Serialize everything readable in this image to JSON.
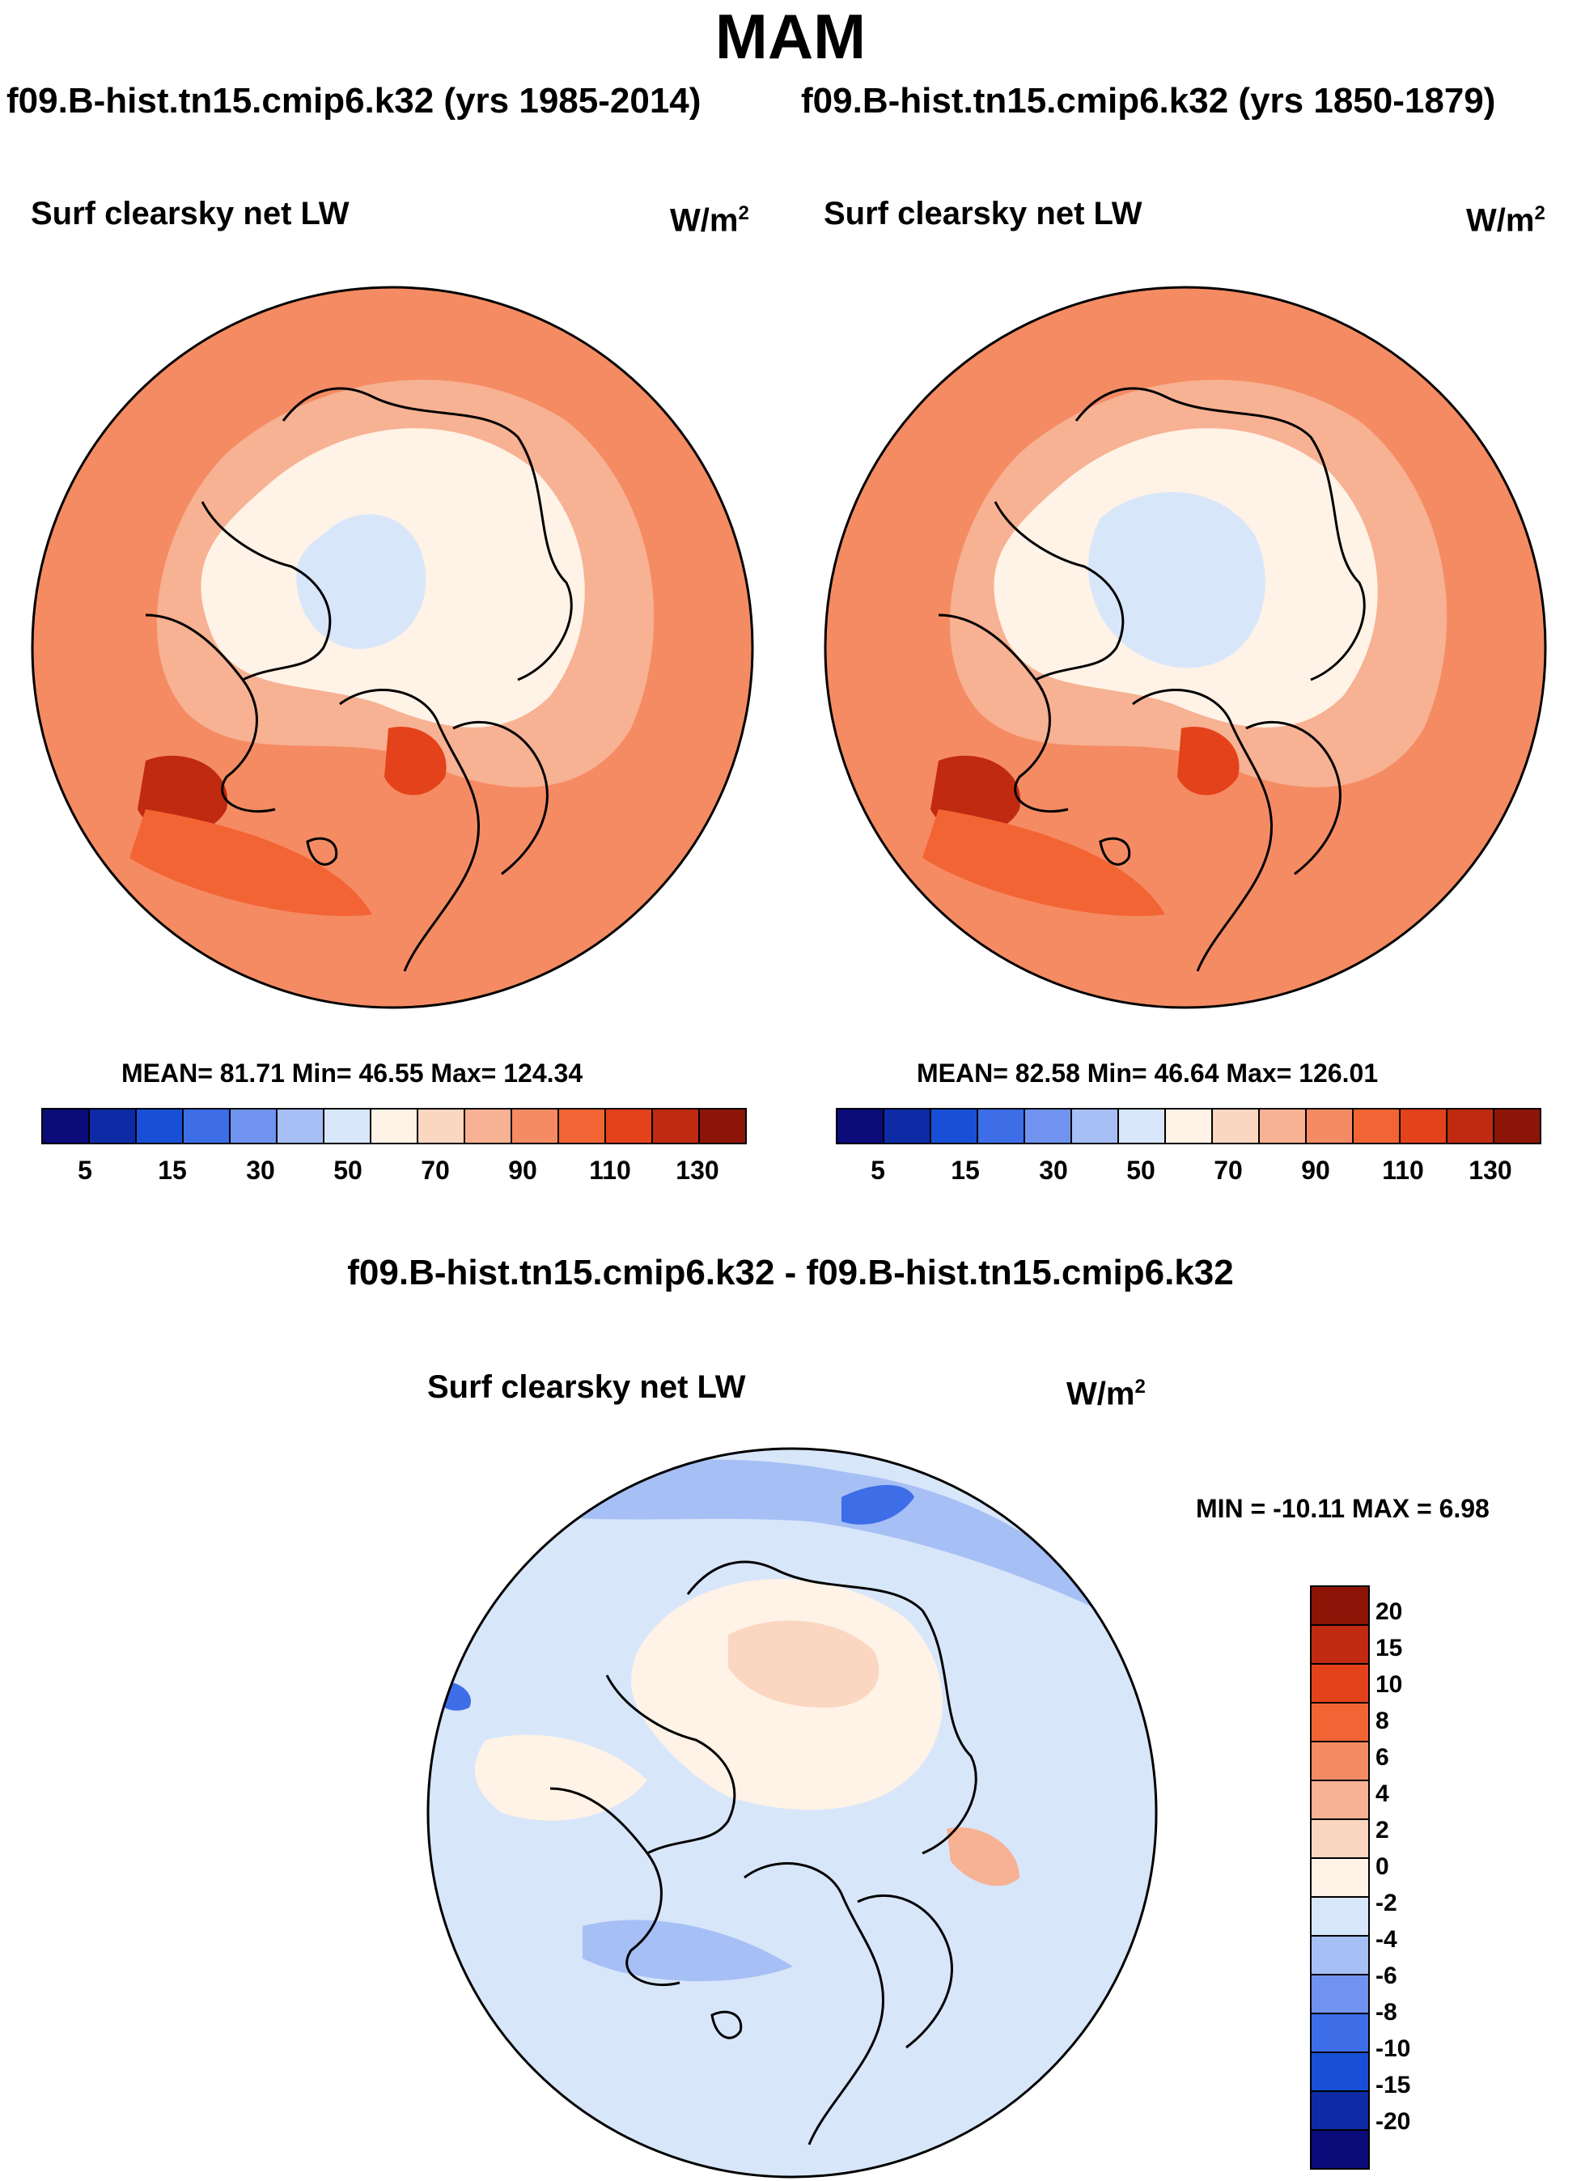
{
  "title": "MAM",
  "header": {
    "left_subtitle": "f09.B-hist.tn15.cmip6.k32 (yrs 1985-2014)",
    "right_subtitle": "f09.B-hist.tn15.cmip6.k32 (yrs 1850-1879)",
    "diff_title": "f09.B-hist.tn15.cmip6.k32 - f09.B-hist.tn15.cmip6.k32"
  },
  "panels": {
    "left": {
      "variable": "Surf clearsky net LW",
      "units_base": "W/m",
      "units_sup": "2",
      "stats": "MEAN=  81.71  Min=  46.55  Max= 124.34"
    },
    "right": {
      "variable": "Surf clearsky net LW",
      "units_base": "W/m",
      "units_sup": "2",
      "stats": "MEAN=  82.58  Min=  46.64  Max= 126.01"
    },
    "diff": {
      "variable": "Surf clearsky net LW",
      "units_base": "W/m",
      "units_sup": "2",
      "stats": "MIN = -10.11 MAX =   6.98"
    }
  },
  "colorbars": {
    "abs_colors": [
      "#0b0b7a",
      "#0d2ba5",
      "#1750d6",
      "#3d6ee8",
      "#6f93ef",
      "#a6bff5",
      "#d8e6fa",
      "#fff2e6",
      "#fbd6c0",
      "#f7b193",
      "#f58b63",
      "#f36434",
      "#e4421b",
      "#c02a10",
      "#8c1508"
    ],
    "abs_ticks": [
      "5",
      "15",
      "30",
      "50",
      "70",
      "90",
      "110",
      "130"
    ],
    "diff_colors": [
      "#8c1508",
      "#c02a10",
      "#e4421b",
      "#f36434",
      "#f58b63",
      "#f7b193",
      "#fbd6c0",
      "#fff2e6",
      "#d8e6fa",
      "#a6bff5",
      "#6f93ef",
      "#3d6ee8",
      "#1750d6",
      "#0d2ba5",
      "#0b0b7a"
    ],
    "diff_ticks": [
      "20",
      "15",
      "10",
      "8",
      "6",
      "4",
      "2",
      "0",
      "-2",
      "-4",
      "-6",
      "-8",
      "-10",
      "-15",
      "-20"
    ]
  }
}
